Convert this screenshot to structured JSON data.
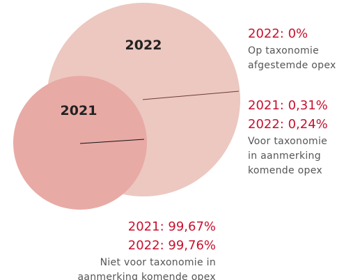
{
  "circles": [
    {
      "label": "2022"
    },
    {
      "label": "2021"
    }
  ],
  "annotations": [
    {
      "values": [
        "2022: 0%"
      ],
      "description": [
        "Op taxonomie",
        "afgestemde opex"
      ]
    },
    {
      "values": [
        "2021: 0,31%",
        "2022: 0,24%"
      ],
      "description": [
        "Voor taxonomie",
        "in aanmerking",
        "komende opex"
      ]
    },
    {
      "values": [
        "2021: 99,67%",
        "2022: 99,76%"
      ],
      "description": [
        "Niet voor taxonomie in",
        "aanmerking komende opex"
      ]
    }
  ]
}
